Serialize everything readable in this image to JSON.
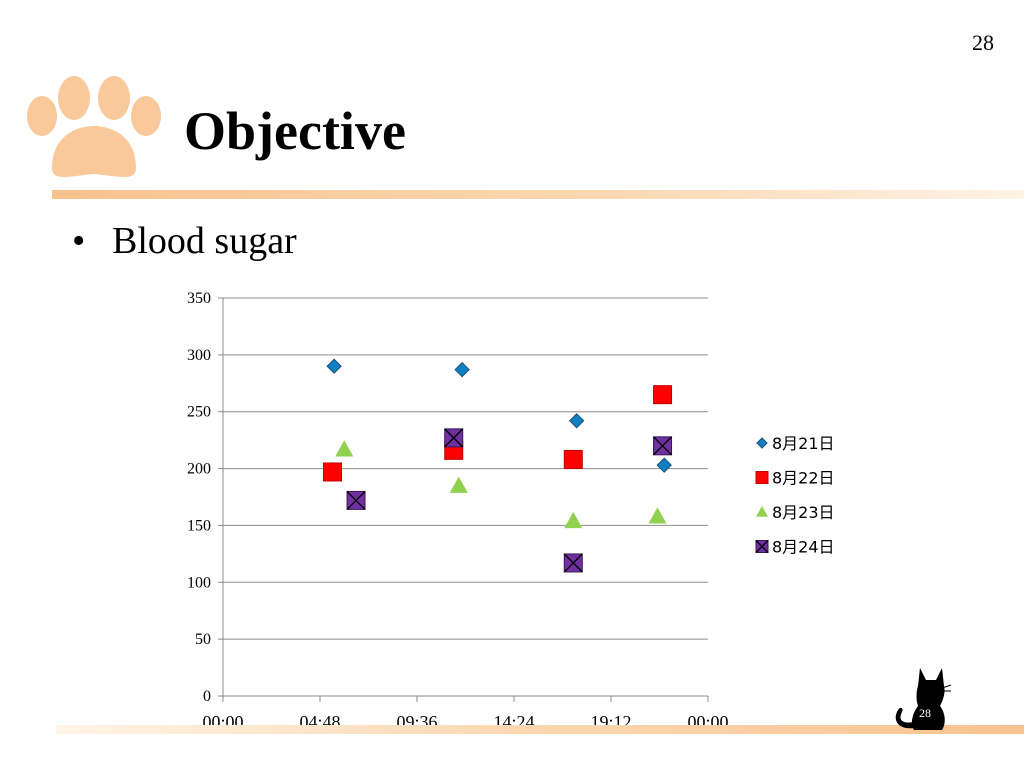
{
  "slide": {
    "page_number": "28",
    "title": "Objective",
    "bullet": "Blood sugar",
    "footer_page_number": "28"
  },
  "colors": {
    "paw": "#f9c89b",
    "rule": "#f7c38f",
    "series_1": "#0e7fc3",
    "series_2": "#ff0000",
    "series_3": "#92d050",
    "series_4": "#7030a0",
    "gridline": "#8c8c8c"
  },
  "icons": {
    "logo": "paw-print-icon",
    "footer": "black-cat-icon"
  },
  "chart_data": {
    "type": "scatter",
    "title": "",
    "xlabel": "",
    "ylabel": "",
    "xlim": [
      "00:00",
      "24:00"
    ],
    "ylim": [
      0,
      350
    ],
    "y_ticks": [
      "0",
      "50",
      "100",
      "150",
      "200",
      "250",
      "300",
      "350"
    ],
    "x_ticks": [
      "00:00",
      "04:48",
      "09:36",
      "14:24",
      "19:12",
      "00:00"
    ],
    "grid": "horizontal",
    "legend": "right",
    "series": [
      {
        "name": "8月21日",
        "marker": "diamond",
        "x": [
          "05:30",
          "11:50",
          "17:30",
          "21:50"
        ],
        "y": [
          290,
          287,
          242,
          203
        ]
      },
      {
        "name": "8月22日",
        "marker": "square",
        "x": [
          "05:25",
          "11:25",
          "17:20",
          "21:45"
        ],
        "y": [
          197,
          216,
          208,
          265
        ]
      },
      {
        "name": "8月23日",
        "marker": "triangle",
        "x": [
          "06:00",
          "11:40",
          "17:20",
          "21:30"
        ],
        "y": [
          217,
          185,
          154,
          158
        ]
      },
      {
        "name": "8月24日",
        "marker": "square-x",
        "x": [
          "06:35",
          "11:25",
          "17:20",
          "21:45"
        ],
        "y": [
          172,
          227,
          117,
          220
        ]
      }
    ]
  }
}
